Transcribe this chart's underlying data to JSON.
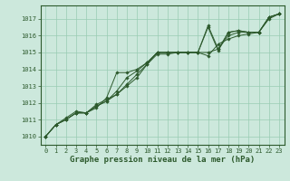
{
  "background_color": "#cce8dc",
  "grid_color": "#99ccb3",
  "line_color": "#2d5a2d",
  "marker_color": "#2d5a2d",
  "title": "Graphe pression niveau de la mer (hPa)",
  "xlabel_fontsize": 6.5,
  "xlim": [
    -0.5,
    23.5
  ],
  "ylim": [
    1009.5,
    1017.8
  ],
  "yticks": [
    1010,
    1011,
    1012,
    1013,
    1014,
    1015,
    1016,
    1017
  ],
  "xticks": [
    0,
    1,
    2,
    3,
    4,
    5,
    6,
    7,
    8,
    9,
    10,
    11,
    12,
    13,
    14,
    15,
    16,
    17,
    18,
    19,
    20,
    21,
    22,
    23
  ],
  "series": [
    [
      1010.0,
      1010.7,
      1011.0,
      1011.4,
      1011.4,
      1011.9,
      1012.2,
      1012.5,
      1013.0,
      1013.5,
      1014.3,
      1014.9,
      1014.9,
      1015.0,
      1015.0,
      1015.0,
      1014.8,
      1015.5,
      1015.8,
      1016.0,
      1016.1,
      1016.2,
      1017.1,
      1017.3
    ],
    [
      1010.0,
      1010.7,
      1011.0,
      1011.4,
      1011.4,
      1011.8,
      1012.1,
      1012.5,
      1013.1,
      1013.7,
      1014.3,
      1015.0,
      1015.0,
      1015.0,
      1015.0,
      1015.0,
      1015.0,
      1015.2,
      1016.0,
      1016.2,
      1016.2,
      1016.2,
      1017.1,
      1017.3
    ],
    [
      1010.0,
      1010.7,
      1011.0,
      1011.4,
      1011.4,
      1011.8,
      1012.1,
      1012.7,
      1013.5,
      1013.9,
      1014.4,
      1015.0,
      1015.0,
      1015.0,
      1015.0,
      1015.0,
      1016.5,
      1015.1,
      1016.2,
      1016.3,
      1016.2,
      1016.2,
      1017.1,
      1017.3
    ],
    [
      1010.0,
      1010.7,
      1011.1,
      1011.5,
      1011.4,
      1011.7,
      1012.3,
      1013.8,
      1013.8,
      1014.0,
      1014.4,
      1015.0,
      1015.0,
      1015.0,
      1015.0,
      1015.0,
      1016.6,
      1015.2,
      1016.2,
      1016.3,
      1016.2,
      1016.2,
      1017.0,
      1017.3
    ]
  ]
}
